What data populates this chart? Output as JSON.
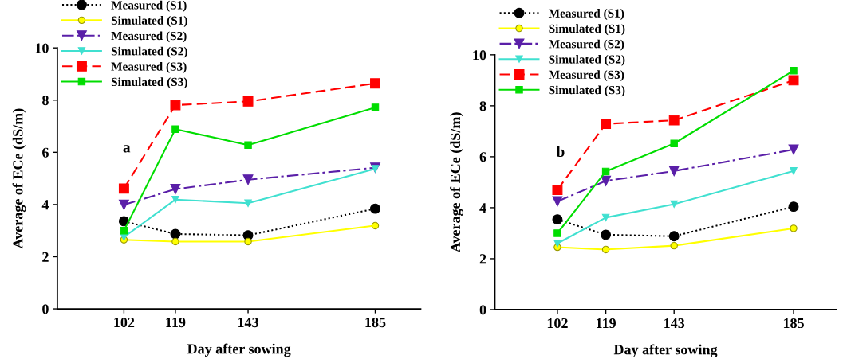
{
  "chart_data": [
    {
      "type": "line",
      "xlabel": "Day after sowing",
      "ylabel": "Average of ECe (dS/m)",
      "annotations": [
        "a"
      ],
      "x": [
        102,
        119,
        143,
        185
      ],
      "xlim": [
        80,
        200
      ],
      "xticks": [
        102,
        119,
        143,
        185
      ],
      "ylim": [
        0,
        10
      ],
      "yticks": [
        0,
        2,
        4,
        6,
        8,
        10
      ],
      "legend": "top left",
      "grid": false,
      "series": [
        {
          "name": "Measured (S1)",
          "color": "#000000",
          "marker": "circle",
          "line_style": "dotted",
          "values": [
            3.36,
            2.87,
            2.82,
            3.84
          ]
        },
        {
          "name": "Simulated (S1)",
          "color": "#ffff00",
          "marker": "circle",
          "line_style": "solid",
          "values": [
            2.65,
            2.58,
            2.58,
            3.19
          ]
        },
        {
          "name": "Measured (S2)",
          "color": "#5a1fa8",
          "marker": "triangle",
          "line_style": "dashdot",
          "values": [
            3.99,
            4.59,
            4.95,
            5.41
          ]
        },
        {
          "name": "Simulated (S2)",
          "color": "#40e0d0",
          "marker": "triangle",
          "line_style": "solid",
          "values": [
            2.75,
            4.19,
            4.05,
            5.37
          ]
        },
        {
          "name": "Measured (S3)",
          "color": "#ff0000",
          "marker": "square",
          "line_style": "dashed",
          "values": [
            4.61,
            7.81,
            7.95,
            8.64
          ]
        },
        {
          "name": "Simulated (S3)",
          "color": "#00dd00",
          "marker": "square",
          "line_style": "solid",
          "values": [
            3.0,
            6.89,
            6.28,
            7.72
          ]
        }
      ]
    },
    {
      "type": "line",
      "xlabel": "Day after sowing",
      "ylabel": "Average of ECe (dS/m)",
      "annotations": [
        "b"
      ],
      "x": [
        102,
        119,
        143,
        185
      ],
      "xlim": [
        80,
        200
      ],
      "xticks": [
        102,
        119,
        143,
        185
      ],
      "ylim": [
        0,
        10
      ],
      "yticks": [
        0,
        2,
        4,
        6,
        8,
        10
      ],
      "legend": "top left",
      "grid": false,
      "series": [
        {
          "name": "Measured (S1)",
          "color": "#000000",
          "marker": "circle",
          "line_style": "dotted",
          "values": [
            3.54,
            2.94,
            2.88,
            4.04
          ]
        },
        {
          "name": "Simulated (S1)",
          "color": "#ffff00",
          "marker": "circle",
          "line_style": "solid",
          "values": [
            2.45,
            2.36,
            2.51,
            3.19
          ]
        },
        {
          "name": "Measured (S2)",
          "color": "#5a1fa8",
          "marker": "triangle",
          "line_style": "dashdot",
          "values": [
            4.25,
            5.05,
            5.44,
            6.28
          ]
        },
        {
          "name": "Simulated (S2)",
          "color": "#40e0d0",
          "marker": "triangle",
          "line_style": "solid",
          "values": [
            2.6,
            3.61,
            4.14,
            5.44
          ]
        },
        {
          "name": "Measured (S3)",
          "color": "#ff0000",
          "marker": "square",
          "line_style": "dashed",
          "values": [
            4.7,
            7.29,
            7.43,
            9.0
          ]
        },
        {
          "name": "Simulated (S3)",
          "color": "#00dd00",
          "marker": "square",
          "line_style": "solid",
          "values": [
            3.0,
            5.42,
            6.52,
            9.38
          ]
        }
      ]
    }
  ]
}
